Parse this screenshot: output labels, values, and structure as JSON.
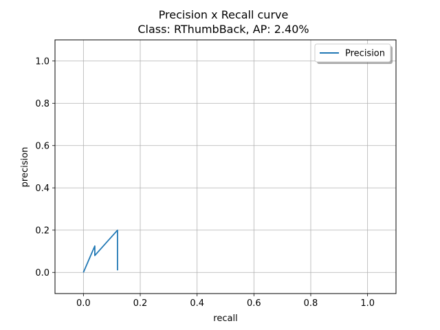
{
  "chart_data": {
    "type": "line",
    "title": "Precision x Recall curve",
    "subtitle": "Class: RThumbBack, AP: 2.40%",
    "xlabel": "recall",
    "ylabel": "precision",
    "xlim": [
      -0.1,
      1.1
    ],
    "ylim": [
      -0.1,
      1.1
    ],
    "xticks": [
      0.0,
      0.2,
      0.4,
      0.6,
      0.8,
      1.0
    ],
    "yticks": [
      0.0,
      0.2,
      0.4,
      0.6,
      0.8,
      1.0
    ],
    "xtick_labels": [
      "0.0",
      "0.2",
      "0.4",
      "0.6",
      "0.8",
      "1.0"
    ],
    "ytick_labels": [
      "0.0",
      "0.2",
      "0.4",
      "0.6",
      "0.8",
      "1.0"
    ],
    "grid": true,
    "legend_position": "top-right",
    "series": [
      {
        "name": "Precision",
        "color": "#1f77b4",
        "x": [
          0.0,
          0.04,
          0.04,
          0.08,
          0.12,
          0.12
        ],
        "y": [
          0.0,
          0.125,
          0.08,
          0.14,
          0.2,
          0.01
        ]
      }
    ]
  }
}
